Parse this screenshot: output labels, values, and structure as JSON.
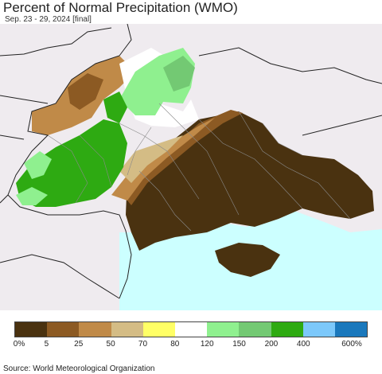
{
  "header": {
    "title": "Percent of Normal Precipitation (WMO)",
    "subtitle": "Sep. 23 - 29, 2024 [final]"
  },
  "legend": {
    "colors": [
      "#4a3210",
      "#8c5a23",
      "#c08a48",
      "#d4bc85",
      "#ffff66",
      "#ffffff",
      "#8ff08f",
      "#73c973",
      "#2eaa12",
      "#7cc8fa",
      "#1a78bc"
    ],
    "labels": [
      "0%",
      "5",
      "25",
      "50",
      "70",
      "80",
      "120",
      "150",
      "200",
      "400",
      "600%"
    ]
  },
  "footer": {
    "source": "Source: World Meteorological Organization"
  }
}
